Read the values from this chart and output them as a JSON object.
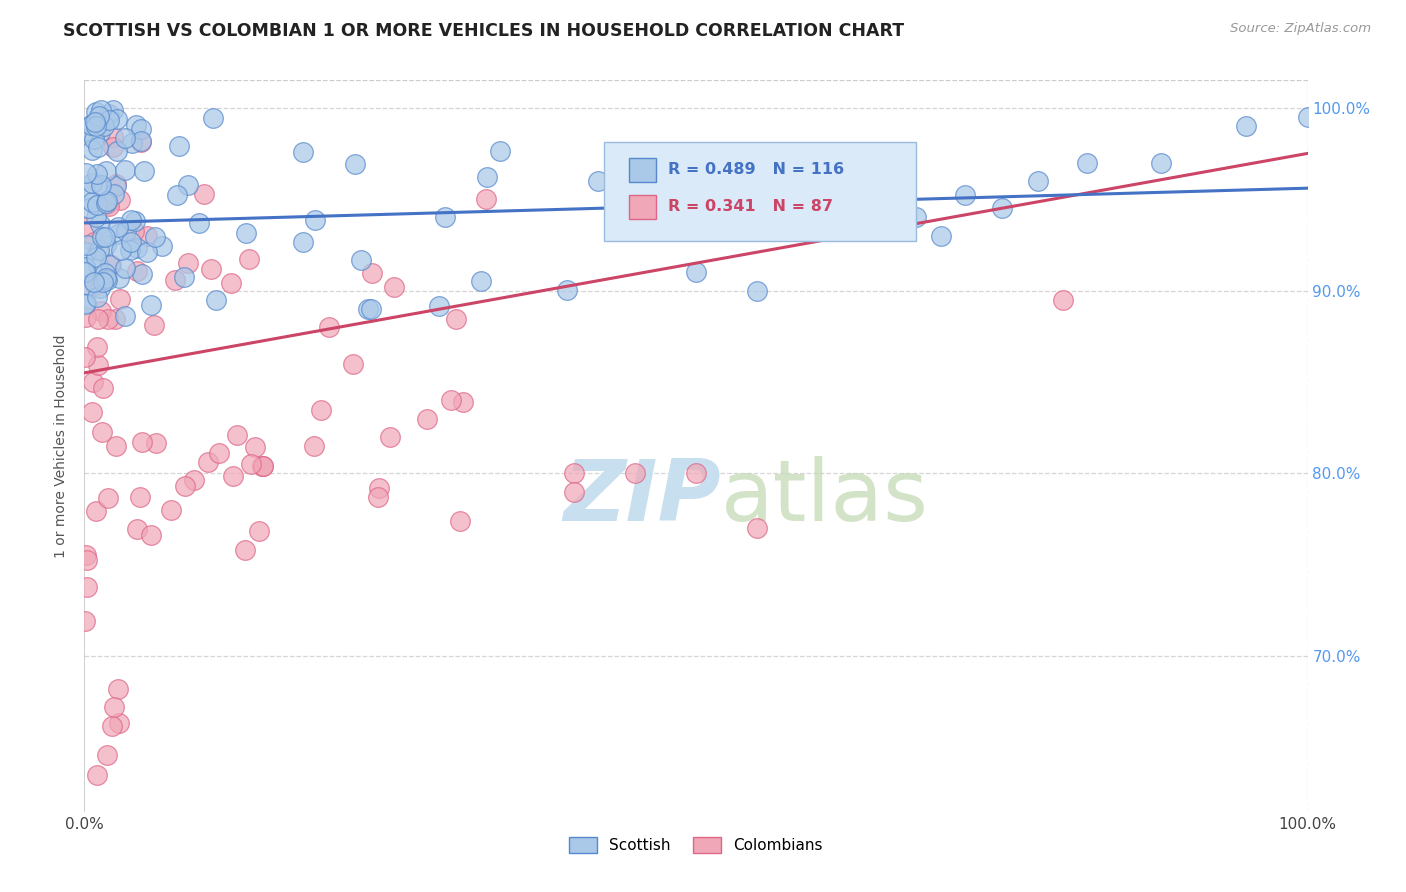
{
  "title": "SCOTTISH VS COLOMBIAN 1 OR MORE VEHICLES IN HOUSEHOLD CORRELATION CHART",
  "source": "Source: ZipAtlas.com",
  "ylabel": "1 or more Vehicles in Household",
  "xlim": [
    0.0,
    1.0
  ],
  "ylim": [
    0.615,
    1.015
  ],
  "ytick_labels_right": [
    "100.0%",
    "90.0%",
    "80.0%",
    "70.0%"
  ],
  "ytick_positions_right": [
    1.0,
    0.9,
    0.8,
    0.7
  ],
  "legend_blue_label": "Scottish",
  "legend_pink_label": "Colombians",
  "R_blue": 0.489,
  "N_blue": 116,
  "R_pink": 0.341,
  "N_pink": 87,
  "blue_color": "#aac8e8",
  "pink_color": "#f0a8b8",
  "blue_edge_color": "#5588cc",
  "pink_edge_color": "#dd6688",
  "blue_line_color": "#4472c4",
  "pink_line_color": "#cc4466",
  "legend_box_color": "#daeaf8",
  "legend_box_edge": "#99bbdd",
  "watermark_color": "#c8dff0",
  "background_color": "#ffffff",
  "grid_color": "#cccccc",
  "title_color": "#222222",
  "right_label_color": "#5599ee",
  "blue_line_start_y": 0.937,
  "blue_line_end_y": 0.956,
  "pink_line_start_y": 0.855,
  "pink_line_end_y": 0.975
}
